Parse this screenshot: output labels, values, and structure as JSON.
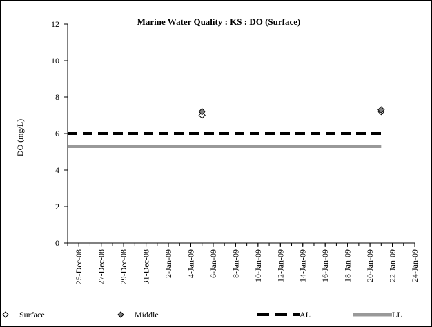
{
  "chart_data": {
    "type": "scatter",
    "title": "Marine Water Quality : KS : DO (Surface)",
    "ylabel": "DO (mg/L)",
    "xlabel": "",
    "ylim": [
      0,
      12
    ],
    "yticks": [
      0,
      2,
      4,
      6,
      8,
      10,
      12
    ],
    "xlim": [
      "2008-12-24",
      "2009-01-24"
    ],
    "xtick_dates": [
      "2008-12-25",
      "2008-12-27",
      "2008-12-29",
      "2008-12-31",
      "2009-01-02",
      "2009-01-04",
      "2009-01-06",
      "2009-01-08",
      "2009-01-10",
      "2009-01-12",
      "2009-01-14",
      "2009-01-16",
      "2009-01-18",
      "2009-01-20",
      "2009-01-22",
      "2009-01-24"
    ],
    "xtick_labels": [
      "25-Dec-08",
      "27-Dec-08",
      "29-Dec-08",
      "31-Dec-08",
      "2-Jan-09",
      "4-Jan-09",
      "6-Jan-09",
      "8-Jan-09",
      "10-Jan-09",
      "12-Jan-09",
      "14-Jan-09",
      "16-Jan-09",
      "18-Jan-09",
      "20-Jan-09",
      "22-Jan-09",
      "24-Jan-09"
    ],
    "grid": false,
    "legend_position": "bottom",
    "series": [
      {
        "name": "Surface",
        "marker": "diamond-open",
        "color": "#000000",
        "points": [
          {
            "x": "2009-01-05",
            "y": 7.0
          },
          {
            "x": "2009-01-21",
            "y": 7.2
          }
        ]
      },
      {
        "name": "Middle",
        "marker": "diamond-filled",
        "color": "#808080",
        "points": [
          {
            "x": "2009-01-05",
            "y": 7.2
          },
          {
            "x": "2009-01-21",
            "y": 7.3
          }
        ]
      },
      {
        "name": "AL",
        "style": "dashed",
        "color": "#000000",
        "points": [
          {
            "x": "2008-12-24",
            "y": 6.0
          },
          {
            "x": "2009-01-21",
            "y": 6.0
          }
        ]
      },
      {
        "name": "LL",
        "style": "solid",
        "color": "#999999",
        "points": [
          {
            "x": "2008-12-24",
            "y": 5.3
          },
          {
            "x": "2009-01-21",
            "y": 5.3
          }
        ]
      }
    ]
  }
}
